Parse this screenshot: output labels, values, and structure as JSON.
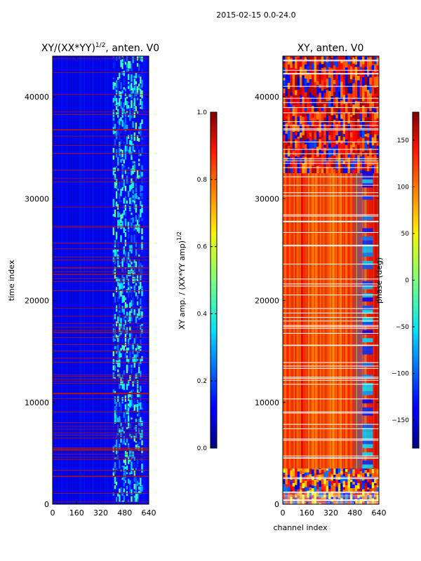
{
  "suptitle": "2015-02-15 0.0-24.0",
  "chart_data": [
    {
      "type": "heatmap",
      "title": "XY/(XX*YY)^1/2, anten. V0",
      "title_parts": {
        "main": "XY/(XX*YY)",
        "sup": "1/2",
        "tail": ", anten. V0"
      },
      "xlabel": "",
      "ylabel": "time index",
      "xlim": [
        0,
        640
      ],
      "ylim": [
        0,
        44000
      ],
      "xticks": [
        "0",
        "160",
        "320",
        "480",
        "640"
      ],
      "yticks": [
        "0",
        "10000",
        "20000",
        "30000",
        "40000"
      ],
      "colorbar": {
        "label": "XY amp. / (XX*YY amp)",
        "label_sup": "1/2",
        "range": [
          0.0,
          1.0
        ],
        "ticks": [
          "0.0",
          "0.2",
          "0.4",
          "0.6",
          "0.8",
          "1.0"
        ]
      },
      "description": "normalized amplitude mostly near 0.1 (blue); structured band between channels ~400 and ~600 with values up to ~0.5; horizontal red flagged lines"
    },
    {
      "type": "heatmap",
      "title": "XY, anten. V0",
      "xlabel": "channel index",
      "ylabel": "",
      "xlim": [
        0,
        640
      ],
      "ylim": [
        0,
        44000
      ],
      "xticks": [
        "0",
        "160",
        "320",
        "480",
        "640"
      ],
      "yticks": [
        "0",
        "10000",
        "20000",
        "30000",
        "40000"
      ],
      "colorbar": {
        "label": "phase (deg)",
        "range": [
          -180,
          180
        ],
        "ticks": [
          "−150",
          "−100",
          "−50",
          "0",
          "50",
          "100",
          "150"
        ]
      },
      "description": "phase mostly 90-180 deg (orange/red) for time index below ~32500, noisier above; flagged white horizontal lines"
    }
  ]
}
